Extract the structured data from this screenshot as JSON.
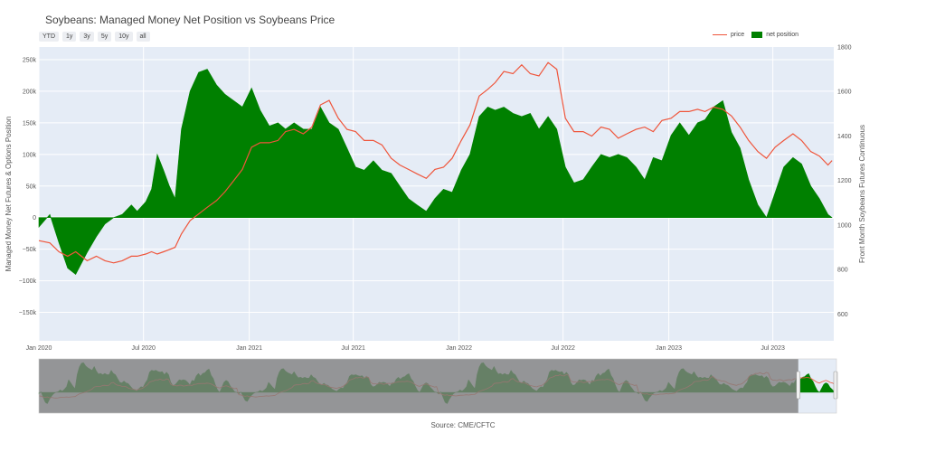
{
  "title": "Soybeans: Managed Money Net Position vs Soybeans Price",
  "range_buttons": [
    "YTD",
    "1y",
    "3y",
    "5y",
    "10y",
    "all"
  ],
  "legend": {
    "price": "price",
    "net_position": "net position"
  },
  "source": "Source: CME/CFTC",
  "colors": {
    "price": "#ef553b",
    "net_position": "#008000",
    "plot_bg": "#e5ecf6",
    "slider_mask": "#7f7f7f"
  },
  "chart_data": {
    "type": "area",
    "title": "Soybeans: Managed Money Net Position vs Soybeans Price",
    "xlabel": "",
    "ylabel": "Managed Money Net Futures & Options Position",
    "y2label": "Front Month Soybeans Futures Continuous",
    "ylim": [
      -195000,
      270000
    ],
    "y2lim": [
      480,
      1800
    ],
    "xlim": [
      "2020-01-01",
      "2023-10-15"
    ],
    "x_ticks": [
      "Jan 2020",
      "Jul 2020",
      "Jan 2021",
      "Jul 2021",
      "Jan 2022",
      "Jul 2022",
      "Jan 2023",
      "Jul 2023"
    ],
    "y_ticks": [
      "250k",
      "200k",
      "150k",
      "100k",
      "50k",
      "0",
      "−50k",
      "−100k",
      "−150k"
    ],
    "y2_ticks": [
      "1800",
      "1600",
      "1400",
      "1200",
      "1000",
      "800",
      "600"
    ],
    "grid": true,
    "legend_position": "top-right",
    "rangeslider": {
      "selected": [
        "2022-12-15",
        "2023-10-15"
      ],
      "full_range": [
        "2006-06-01",
        "2023-10-15"
      ]
    },
    "series": [
      {
        "name": "net position",
        "axis": "y",
        "style": "area",
        "x": [
          "2020-01-01",
          "2020-01-20",
          "2020-02-05",
          "2020-02-20",
          "2020-03-05",
          "2020-03-25",
          "2020-04-10",
          "2020-04-25",
          "2020-05-10",
          "2020-05-25",
          "2020-06-10",
          "2020-06-20",
          "2020-07-05",
          "2020-07-15",
          "2020-07-25",
          "2020-08-05",
          "2020-08-15",
          "2020-08-25",
          "2020-09-05",
          "2020-09-20",
          "2020-10-05",
          "2020-10-20",
          "2020-11-05",
          "2020-11-20",
          "2020-12-05",
          "2020-12-20",
          "2021-01-05",
          "2021-01-20",
          "2021-02-05",
          "2021-02-20",
          "2021-03-05",
          "2021-03-20",
          "2021-04-05",
          "2021-04-20",
          "2021-05-05",
          "2021-05-20",
          "2021-06-05",
          "2021-06-20",
          "2021-07-05",
          "2021-07-20",
          "2021-08-05",
          "2021-08-20",
          "2021-09-05",
          "2021-09-20",
          "2021-10-05",
          "2021-10-20",
          "2021-11-05",
          "2021-11-20",
          "2021-12-05",
          "2021-12-20",
          "2022-01-05",
          "2022-01-20",
          "2022-02-05",
          "2022-02-20",
          "2022-03-05",
          "2022-03-20",
          "2022-04-05",
          "2022-04-20",
          "2022-05-05",
          "2022-05-20",
          "2022-06-05",
          "2022-06-20",
          "2022-07-05",
          "2022-07-20",
          "2022-08-05",
          "2022-08-20",
          "2022-09-05",
          "2022-09-20",
          "2022-10-05",
          "2022-10-20",
          "2022-11-05",
          "2022-11-20",
          "2022-12-05",
          "2022-12-20",
          "2023-01-05",
          "2023-01-20",
          "2023-02-05",
          "2023-02-20",
          "2023-03-05",
          "2023-03-20",
          "2023-04-05",
          "2023-04-20",
          "2023-05-05",
          "2023-05-20",
          "2023-06-05",
          "2023-06-20",
          "2023-07-05",
          "2023-07-20",
          "2023-08-05",
          "2023-08-20",
          "2023-09-05",
          "2023-09-20",
          "2023-10-05",
          "2023-10-12"
        ],
        "values": [
          -15000,
          5000,
          -40000,
          -80000,
          -90000,
          -55000,
          -30000,
          -10000,
          0,
          5000,
          20000,
          10000,
          25000,
          45000,
          100000,
          75000,
          50000,
          30000,
          140000,
          200000,
          230000,
          235000,
          210000,
          195000,
          185000,
          175000,
          205000,
          170000,
          145000,
          150000,
          140000,
          150000,
          140000,
          140000,
          175000,
          150000,
          140000,
          110000,
          80000,
          75000,
          90000,
          75000,
          70000,
          50000,
          30000,
          20000,
          10000,
          30000,
          45000,
          40000,
          75000,
          100000,
          160000,
          175000,
          170000,
          175000,
          165000,
          160000,
          165000,
          140000,
          160000,
          140000,
          80000,
          55000,
          60000,
          80000,
          100000,
          95000,
          100000,
          95000,
          80000,
          60000,
          95000,
          90000,
          130000,
          150000,
          130000,
          150000,
          155000,
          175000,
          185000,
          135000,
          110000,
          60000,
          20000,
          0,
          40000,
          80000,
          95000,
          85000,
          50000,
          30000,
          5000,
          0
        ]
      },
      {
        "name": "price",
        "axis": "y2",
        "style": "line",
        "x": [
          "2020-01-01",
          "2020-01-20",
          "2020-02-05",
          "2020-02-20",
          "2020-03-05",
          "2020-03-25",
          "2020-04-10",
          "2020-04-25",
          "2020-05-10",
          "2020-05-25",
          "2020-06-10",
          "2020-06-20",
          "2020-07-05",
          "2020-07-15",
          "2020-07-25",
          "2020-08-05",
          "2020-08-15",
          "2020-08-25",
          "2020-09-05",
          "2020-09-20",
          "2020-10-05",
          "2020-10-20",
          "2020-11-05",
          "2020-11-20",
          "2020-12-05",
          "2020-12-20",
          "2021-01-05",
          "2021-01-20",
          "2021-02-05",
          "2021-02-20",
          "2021-03-05",
          "2021-03-20",
          "2021-04-05",
          "2021-04-20",
          "2021-05-05",
          "2021-05-20",
          "2021-06-05",
          "2021-06-20",
          "2021-07-05",
          "2021-07-20",
          "2021-08-05",
          "2021-08-20",
          "2021-09-05",
          "2021-09-20",
          "2021-10-05",
          "2021-10-20",
          "2021-11-05",
          "2021-11-20",
          "2021-12-05",
          "2021-12-20",
          "2022-01-05",
          "2022-01-20",
          "2022-02-05",
          "2022-02-20",
          "2022-03-05",
          "2022-03-20",
          "2022-04-05",
          "2022-04-20",
          "2022-05-05",
          "2022-05-20",
          "2022-06-05",
          "2022-06-20",
          "2022-07-05",
          "2022-07-20",
          "2022-08-05",
          "2022-08-20",
          "2022-09-05",
          "2022-09-20",
          "2022-10-05",
          "2022-10-20",
          "2022-11-05",
          "2022-11-20",
          "2022-12-05",
          "2022-12-20",
          "2023-01-05",
          "2023-01-20",
          "2023-02-05",
          "2023-02-20",
          "2023-03-05",
          "2023-03-20",
          "2023-04-05",
          "2023-04-20",
          "2023-05-05",
          "2023-05-20",
          "2023-06-05",
          "2023-06-20",
          "2023-07-05",
          "2023-07-20",
          "2023-08-05",
          "2023-08-20",
          "2023-09-05",
          "2023-09-20",
          "2023-10-05",
          "2023-10-12"
        ],
        "values": [
          930,
          920,
          880,
          860,
          880,
          840,
          860,
          840,
          830,
          840,
          860,
          860,
          870,
          880,
          870,
          880,
          890,
          900,
          960,
          1020,
          1050,
          1080,
          1110,
          1150,
          1200,
          1250,
          1350,
          1370,
          1370,
          1380,
          1420,
          1430,
          1410,
          1440,
          1540,
          1560,
          1480,
          1430,
          1420,
          1380,
          1380,
          1360,
          1300,
          1270,
          1250,
          1230,
          1210,
          1250,
          1260,
          1300,
          1380,
          1450,
          1580,
          1610,
          1640,
          1690,
          1680,
          1720,
          1680,
          1670,
          1730,
          1700,
          1480,
          1420,
          1420,
          1400,
          1440,
          1430,
          1390,
          1410,
          1430,
          1440,
          1420,
          1470,
          1480,
          1510,
          1510,
          1520,
          1510,
          1530,
          1520,
          1490,
          1440,
          1380,
          1330,
          1300,
          1350,
          1380,
          1410,
          1380,
          1330,
          1310,
          1270,
          1290
        ]
      }
    ]
  }
}
